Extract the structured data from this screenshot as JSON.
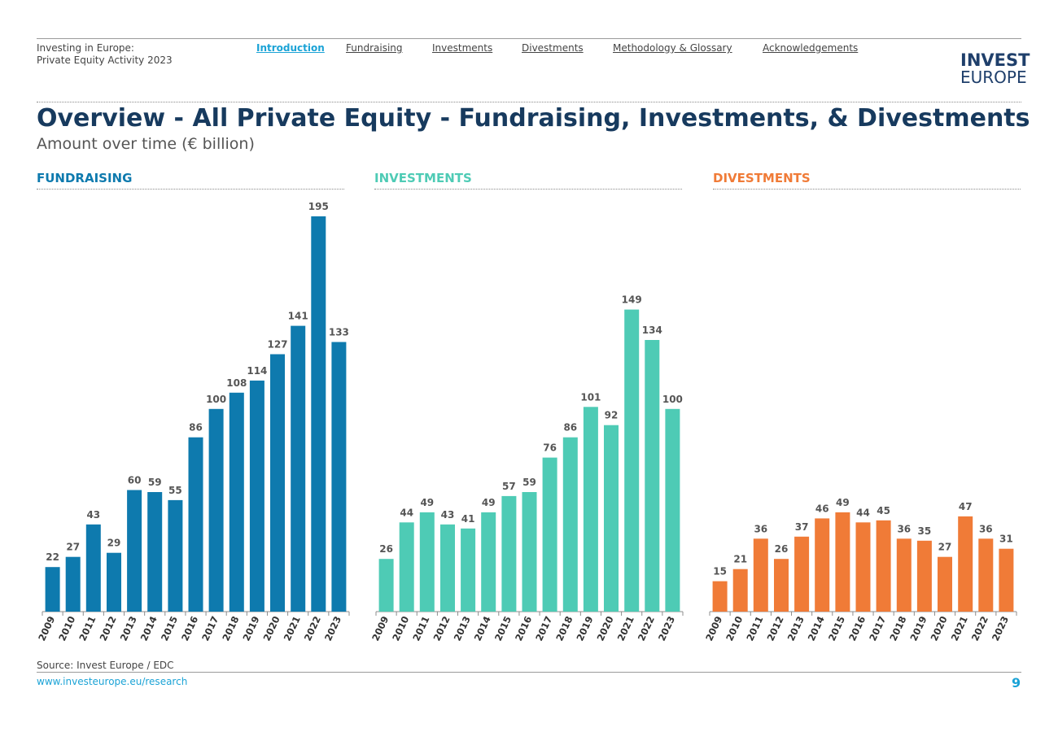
{
  "header": {
    "title_line1": "Investing in Europe:",
    "title_line2": "Private Equity Activity 2023",
    "nav": [
      {
        "label": "Introduction",
        "active": true
      },
      {
        "label": "Fundraising",
        "active": false
      },
      {
        "label": "Investments",
        "active": false
      },
      {
        "label": "Divestments",
        "active": false
      },
      {
        "label": "Methodology & Glossary",
        "active": false
      },
      {
        "label": "Acknowledgements",
        "active": false
      }
    ],
    "logo_line1": "INVEST",
    "logo_line2": "EUROPE"
  },
  "page": {
    "title": "Overview - All Private Equity - Fundraising, Investments, & Divestments",
    "subtitle": "Amount over time (€ billion)"
  },
  "footer": {
    "source": "Source: Invest Europe / EDC",
    "url": "www.investeurope.eu/research",
    "page_number": "9"
  },
  "chart_data": [
    {
      "type": "bar",
      "title": "FUNDRAISING",
      "color": "#0e7aae",
      "title_color": "#0e7aae",
      "categories": [
        "2009",
        "2010",
        "2011",
        "2012",
        "2013",
        "2014",
        "2015",
        "2016",
        "2017",
        "2018",
        "2019",
        "2020",
        "2021",
        "2022",
        "2023"
      ],
      "values": [
        22,
        27,
        43,
        29,
        60,
        59,
        55,
        86,
        100,
        108,
        114,
        127,
        141,
        195,
        133
      ],
      "ylim": [
        0,
        195
      ]
    },
    {
      "type": "bar",
      "title": "INVESTMENTS",
      "color": "#4ecbb5",
      "title_color": "#4ecbb5",
      "categories": [
        "2009",
        "2010",
        "2011",
        "2012",
        "2013",
        "2014",
        "2015",
        "2016",
        "2017",
        "2018",
        "2019",
        "2020",
        "2021",
        "2022",
        "2023"
      ],
      "values": [
        26,
        44,
        49,
        43,
        41,
        49,
        57,
        59,
        76,
        86,
        101,
        92,
        149,
        134,
        100
      ],
      "ylim": [
        0,
        195
      ]
    },
    {
      "type": "bar",
      "title": "DIVESTMENTS",
      "color": "#f07b37",
      "title_color": "#f07b37",
      "categories": [
        "2009",
        "2010",
        "2011",
        "2012",
        "2013",
        "2014",
        "2015",
        "2016",
        "2017",
        "2018",
        "2019",
        "2020",
        "2021",
        "2022",
        "2023"
      ],
      "values": [
        15,
        21,
        36,
        26,
        37,
        46,
        49,
        44,
        45,
        36,
        35,
        27,
        47,
        36,
        31
      ],
      "ylim": [
        0,
        195
      ]
    }
  ]
}
